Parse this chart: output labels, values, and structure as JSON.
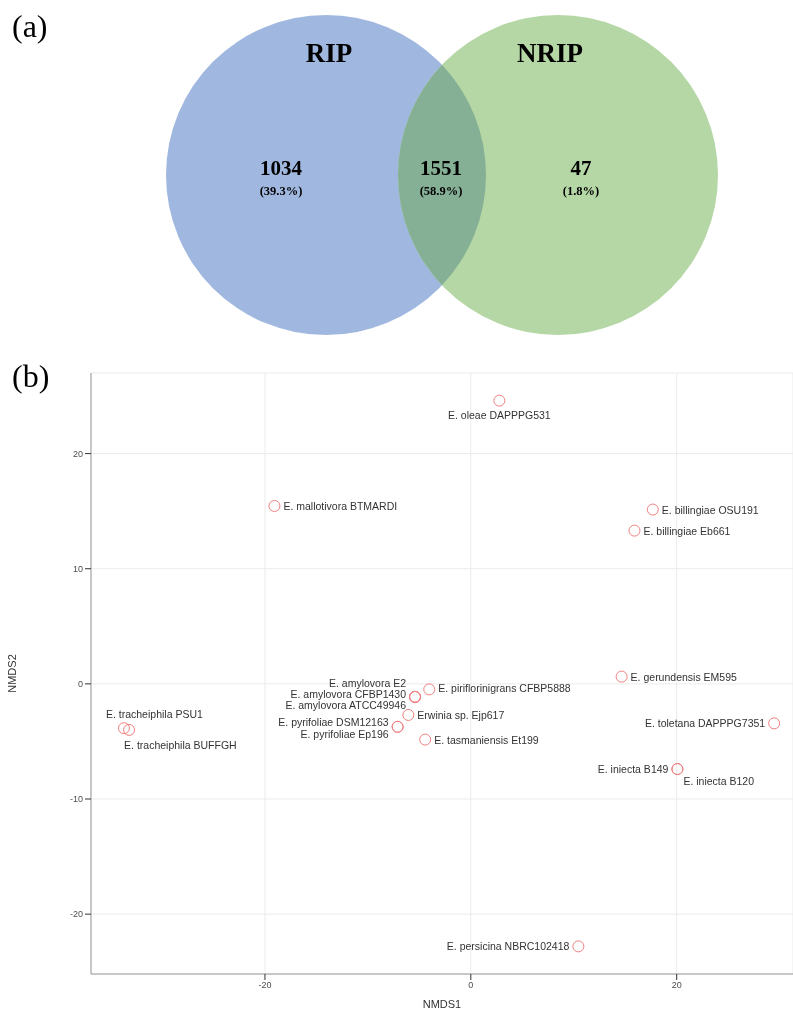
{
  "chart_data": [
    {
      "type": "other",
      "title": "(a)",
      "categories": [
        "RIP",
        null,
        "NRIP"
      ],
      "values": [
        1034,
        1551,
        47
      ],
      "colors": [
        "#a0b8e0",
        "#86b095",
        "#b5d7a5"
      ],
      "data_labels": true,
      "annotations": [
        "(39.3%)",
        "(58.9%)",
        "(1.8%)"
      ]
    },
    {
      "type": "scatter",
      "title": "(b)",
      "xlabel": "NMDS1",
      "ylabel": "NMDS2",
      "marker": "circle",
      "grid": true,
      "xlim": [
        -36.9,
        31.3
      ],
      "ylim": [
        -25.2,
        27
      ],
      "xticks": [
        -20,
        0,
        20
      ],
      "yticks": [
        -20,
        -10,
        0,
        10,
        20
      ],
      "x": [
        2.77,
        -19.08,
        17.68,
        15.9,
        -4.04,
        -5.42,
        -5.42,
        -5.42,
        -6.07,
        -7.11,
        -7.11,
        -4.43,
        14.65,
        29.47,
        20.07,
        20.07,
        -33.7,
        -33.2,
        10.45
      ],
      "series": [
        {
          "color": "#f08080",
          "values": [
            24.6,
            15.45,
            15.14,
            13.31,
            -0.48,
            -1.13,
            -1.13,
            -1.13,
            -2.7,
            -3.73,
            -3.73,
            -4.84,
            0.63,
            -3.43,
            -7.4,
            -7.4,
            -3.85,
            -4.0,
            -22.8
          ]
        }
      ],
      "annotations": [
        {
          "text": "E. oleae DAPPPG531",
          "x": 2.77,
          "y": 24.6
        },
        {
          "text": "E. mallotivora BTMARDI",
          "x": -19.08,
          "y": 15.45
        },
        {
          "text": "E. billingiae OSU191",
          "x": 17.68,
          "y": 15.14
        },
        {
          "text": "E. billingiae Eb661",
          "x": 15.9,
          "y": 13.31
        },
        {
          "text": "E. piriflorinigrans CFBP5888",
          "x": -4.04,
          "y": -0.48
        },
        {
          "text": "E. amylovora E2",
          "x": -5.42,
          "y": -1.13
        },
        {
          "text": "E. amylovora CFBP1430",
          "x": -5.42,
          "y": -1.13
        },
        {
          "text": "E. amylovora ATCC49946",
          "x": -5.42,
          "y": -1.13
        },
        {
          "text": "Erwinia sp. Ejp617",
          "x": -6.07,
          "y": -2.7
        },
        {
          "text": "E. pyrifoliae DSM12163",
          "x": -7.11,
          "y": -3.73
        },
        {
          "text": "E. pyrifoliae Ep196",
          "x": -7.11,
          "y": -3.73
        },
        {
          "text": "E. tasmaniensis Et199",
          "x": -4.43,
          "y": -4.84
        },
        {
          "text": "E. gerundensis EM595",
          "x": 14.65,
          "y": 0.63
        },
        {
          "text": "E. toletana DAPPPG7351",
          "x": 29.47,
          "y": -3.43
        },
        {
          "text": "E. iniecta B149",
          "x": 20.07,
          "y": -7.4
        },
        {
          "text": "E. iniecta B120",
          "x": 20.07,
          "y": -7.4
        },
        {
          "text": "E. tracheiphila PSU1",
          "x": -33.7,
          "y": -3.85
        },
        {
          "text": "E. tracheiphila BUFFGH",
          "x": -33.2,
          "y": -4.0
        },
        {
          "text": "E. persicina NBRC102418",
          "x": 10.45,
          "y": -22.8
        }
      ]
    }
  ]
}
